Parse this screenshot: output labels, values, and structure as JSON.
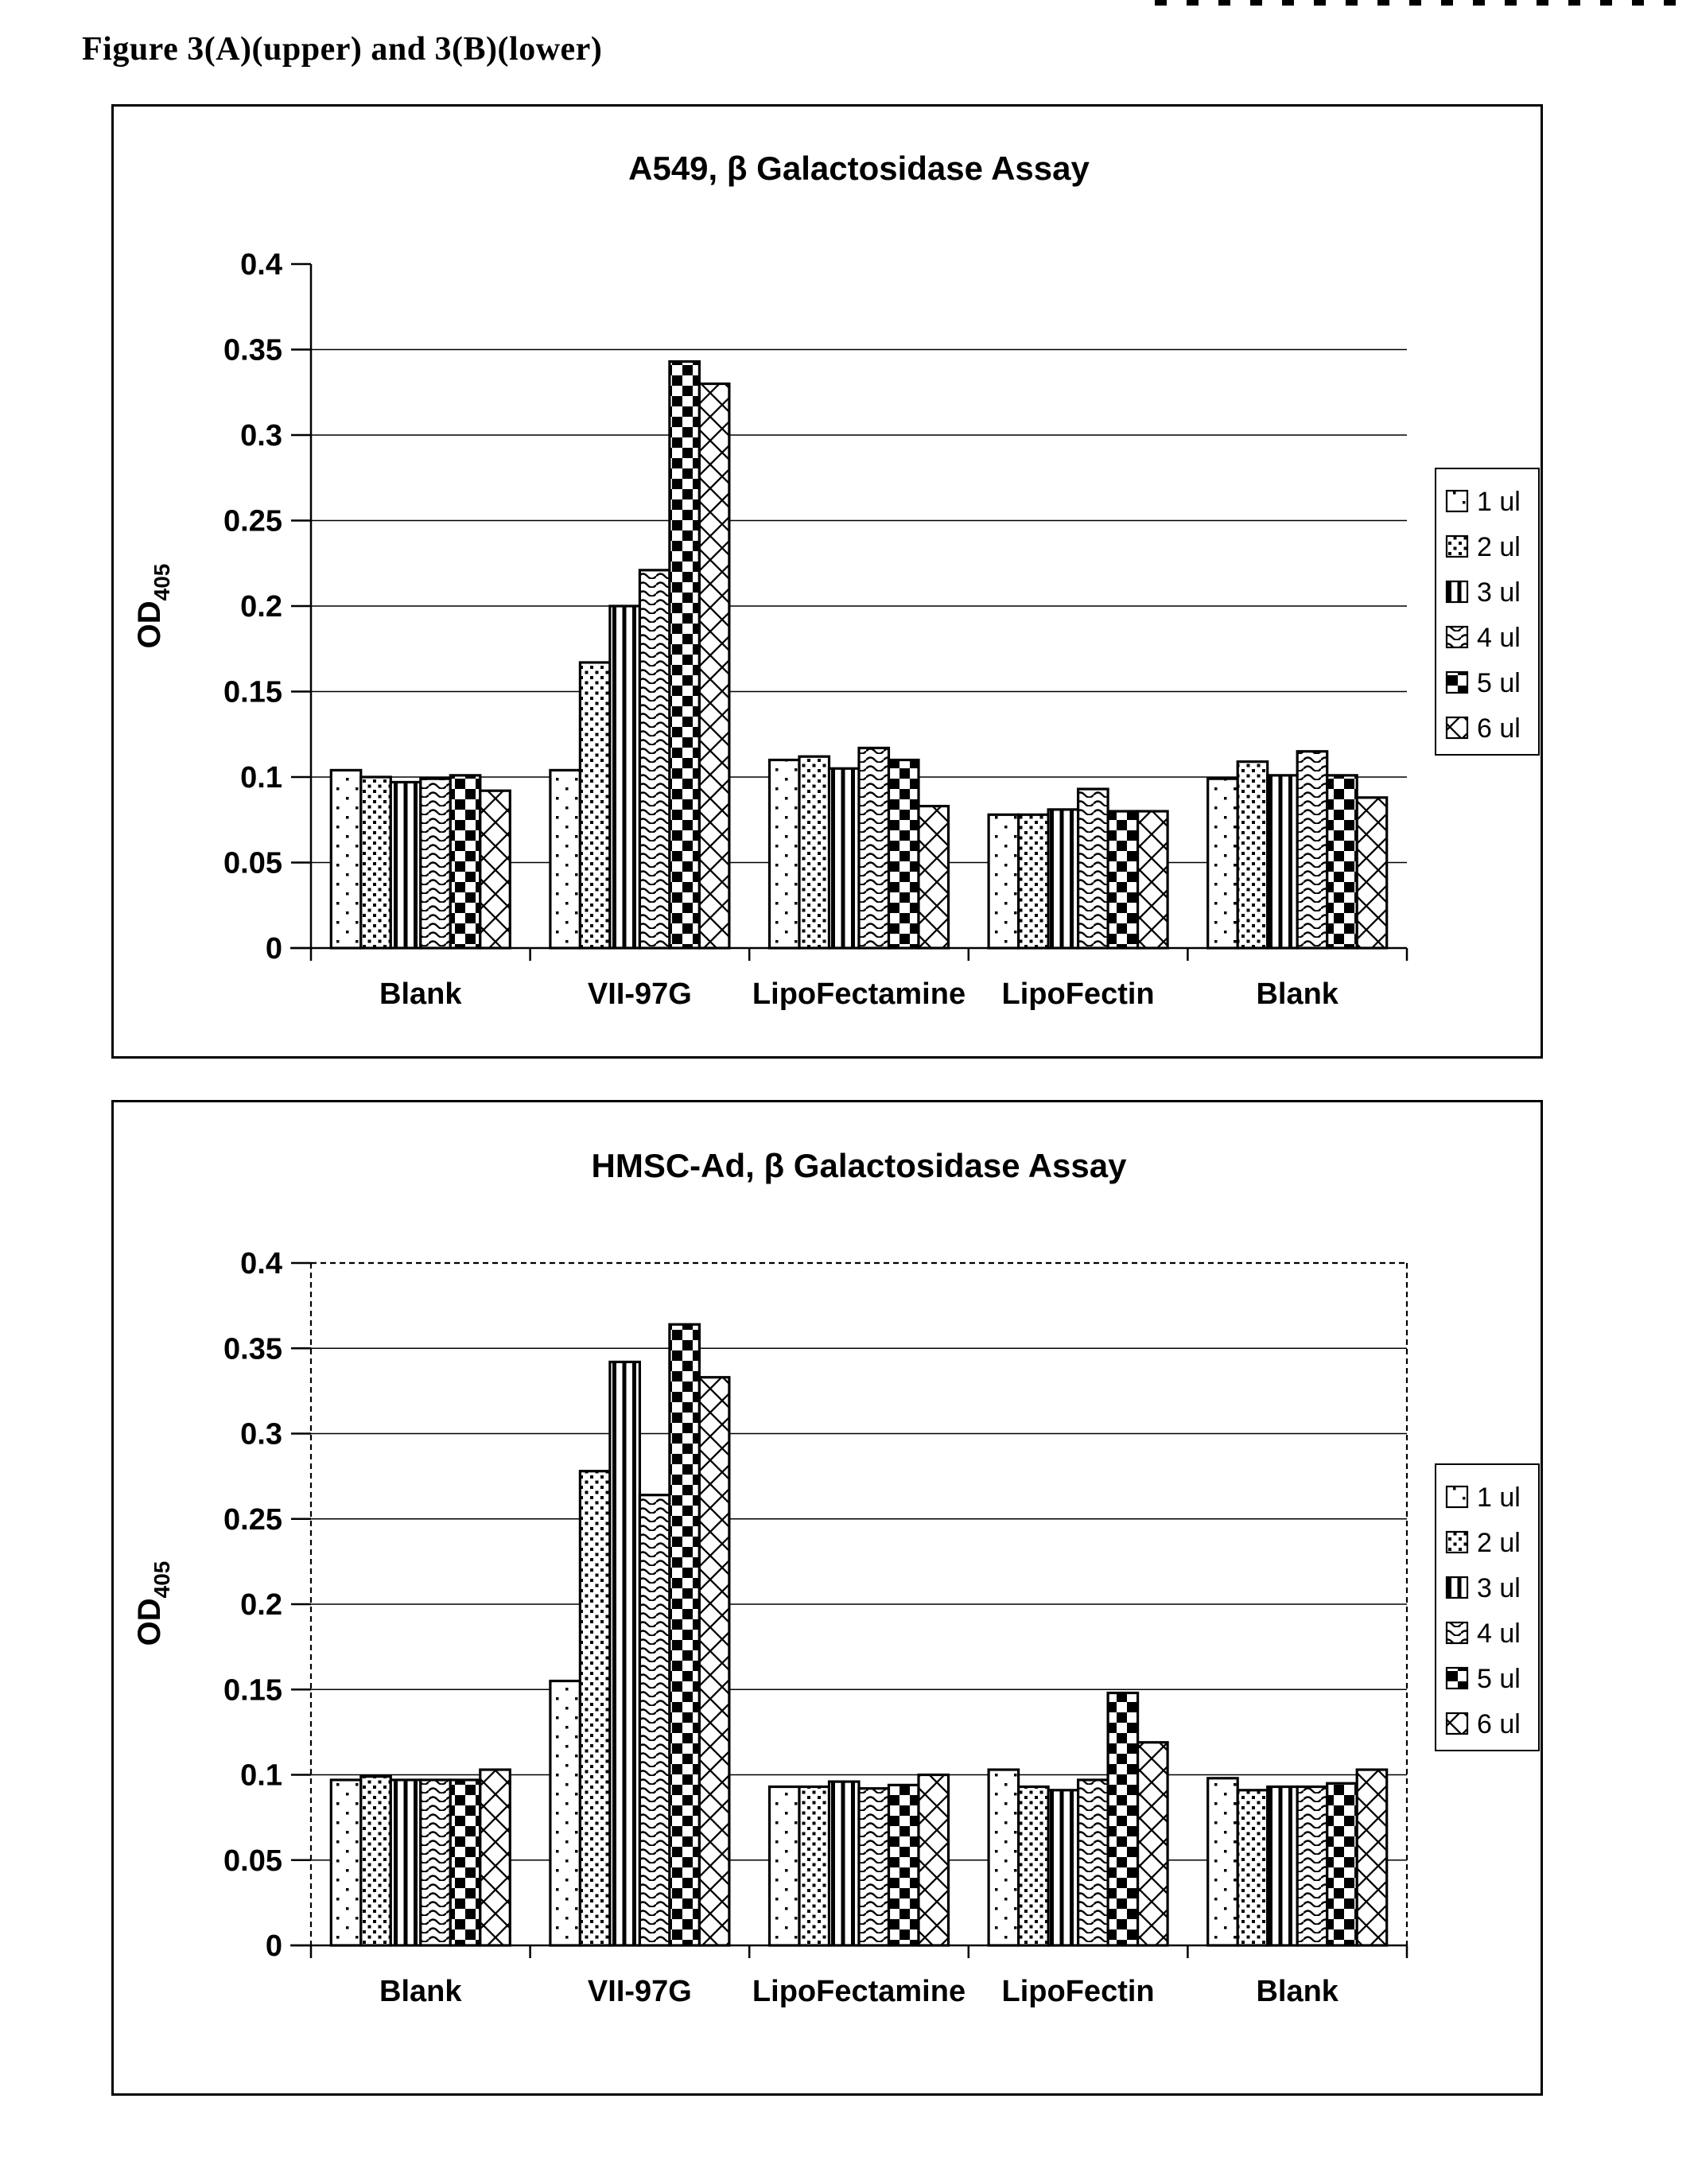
{
  "page": {
    "figure_caption": "Figure 3(A)(upper) and 3(B)(lower)"
  },
  "chart_data": [
    {
      "type": "bar",
      "title": "A549, β Galactosidase Assay",
      "ylabel_main": "OD",
      "ylabel_sub": "405",
      "ylim": [
        0,
        0.4
      ],
      "yticks": [
        "0",
        "0.05",
        "0.1",
        "0.15",
        "0.2",
        "0.25",
        "0.3",
        "0.35",
        "0.4"
      ],
      "grid": true,
      "legend_position": "right",
      "plot_border": "solid-axes-only",
      "categories": [
        "Blank",
        "VII-97G",
        "LipoFectamine",
        "LipoFectin",
        "Blank"
      ],
      "series": [
        {
          "name": "1 ul",
          "pattern": "dots-sparse",
          "values": [
            0.104,
            0.104,
            0.11,
            0.078,
            0.099
          ]
        },
        {
          "name": "2 ul",
          "pattern": "dots-dense",
          "values": [
            0.1,
            0.167,
            0.112,
            0.078,
            0.109
          ]
        },
        {
          "name": "3 ul",
          "pattern": "vertical-lines",
          "values": [
            0.097,
            0.2,
            0.105,
            0.081,
            0.101
          ]
        },
        {
          "name": "4 ul",
          "pattern": "waves",
          "values": [
            0.099,
            0.221,
            0.117,
            0.093,
            0.115
          ]
        },
        {
          "name": "5 ul",
          "pattern": "checkerboard",
          "values": [
            0.101,
            0.343,
            0.11,
            0.08,
            0.101
          ]
        },
        {
          "name": "6 ul",
          "pattern": "diamond-lattice",
          "values": [
            0.092,
            0.33,
            0.083,
            0.08,
            0.088
          ]
        }
      ]
    },
    {
      "type": "bar",
      "title": "HMSC-Ad, β Galactosidase Assay",
      "ylabel_main": "OD",
      "ylabel_sub": "405",
      "ylim": [
        0,
        0.4
      ],
      "yticks": [
        "0",
        "0.05",
        "0.1",
        "0.15",
        "0.2",
        "0.25",
        "0.3",
        "0.35",
        "0.4"
      ],
      "grid": true,
      "legend_position": "right",
      "plot_border": "dashed-box",
      "categories": [
        "Blank",
        "VII-97G",
        "LipoFectamine",
        "LipoFectin",
        "Blank"
      ],
      "series": [
        {
          "name": "1 ul",
          "pattern": "dots-sparse",
          "values": [
            0.097,
            0.155,
            0.093,
            0.103,
            0.098
          ]
        },
        {
          "name": "2 ul",
          "pattern": "dots-dense",
          "values": [
            0.099,
            0.278,
            0.093,
            0.093,
            0.091
          ]
        },
        {
          "name": "3 ul",
          "pattern": "vertical-lines",
          "values": [
            0.097,
            0.342,
            0.096,
            0.091,
            0.093
          ]
        },
        {
          "name": "4 ul",
          "pattern": "waves",
          "values": [
            0.097,
            0.264,
            0.092,
            0.097,
            0.093
          ]
        },
        {
          "name": "5 ul",
          "pattern": "checkerboard",
          "values": [
            0.097,
            0.364,
            0.094,
            0.148,
            0.095
          ]
        },
        {
          "name": "6 ul",
          "pattern": "diamond-lattice",
          "values": [
            0.103,
            0.333,
            0.1,
            0.119,
            0.103
          ]
        }
      ]
    }
  ]
}
